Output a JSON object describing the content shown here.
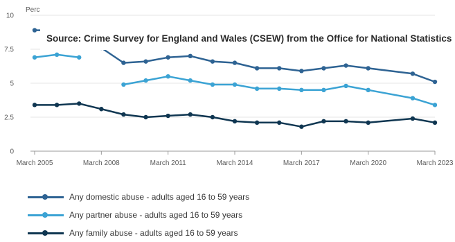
{
  "chart_data": {
    "type": "line",
    "ylabel": "Perc",
    "source": "Source: Crime Survey for England and Wales (CSEW) from the Office for National Statistics",
    "ylim": [
      0,
      10
    ],
    "yticks": [
      "0",
      "2.5",
      "5",
      "7.5",
      "10"
    ],
    "xticks": [
      "March 2005",
      "March 2008",
      "March 2011",
      "March 2014",
      "March 2017",
      "March 2020",
      "March 2023"
    ],
    "x": [
      "March 2005",
      "March 2006",
      "March 2007",
      "March 2008",
      "March 2009",
      "March 2010",
      "March 2011",
      "March 2012",
      "March 2013",
      "March 2014",
      "March 2015",
      "March 2016",
      "March 2017",
      "March 2018",
      "March 2019",
      "March 2020",
      "March 2022",
      "March 2023"
    ],
    "grid": true,
    "series": [
      {
        "name": "Any domestic abuse - adults aged 16 to 59 years",
        "color": "#2e6393",
        "values": [
          8.9,
          8.9,
          8.2,
          7.6,
          6.5,
          6.6,
          6.9,
          7.0,
          6.6,
          6.5,
          6.1,
          6.1,
          5.9,
          6.1,
          6.3,
          6.1,
          5.7,
          5.1
        ]
      },
      {
        "name": "Any partner abuse - adults aged 16 to 59 years",
        "color": "#3ba3d4",
        "values": [
          6.9,
          7.1,
          6.9,
          null,
          4.9,
          5.2,
          5.5,
          5.2,
          4.9,
          4.9,
          4.6,
          4.6,
          4.5,
          4.5,
          4.8,
          4.5,
          3.9,
          3.4
        ]
      },
      {
        "name": "Any family abuse - adults aged 16 to 59 years",
        "color": "#0f3651",
        "values": [
          3.4,
          3.4,
          3.5,
          3.1,
          2.7,
          2.5,
          2.6,
          2.7,
          2.5,
          2.2,
          2.1,
          2.1,
          1.8,
          2.2,
          2.2,
          2.1,
          2.4,
          2.1
        ]
      }
    ]
  }
}
